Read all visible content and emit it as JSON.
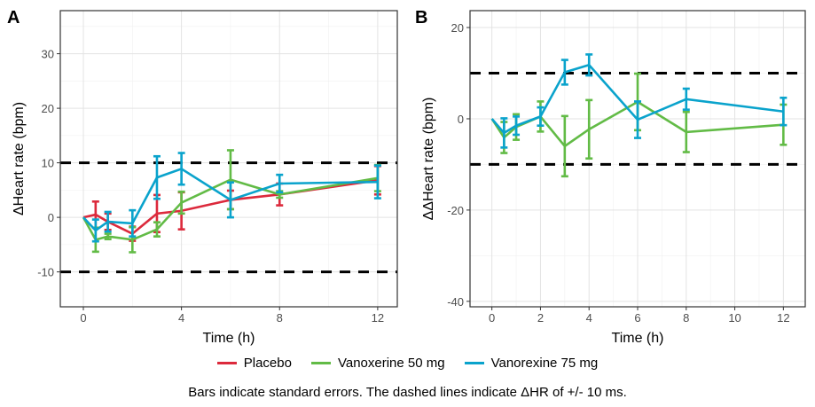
{
  "caption": "Bars indicate standard errors. The dashed lines indicate ΔHR of +/- 10 ms.",
  "colors": {
    "Placebo": "#dc2a3c",
    "Vanoxerine 50 mg": "#62bb46",
    "Vanorexine 75 mg": "#0aa3cc"
  },
  "legend": [
    "Placebo",
    "Vanoxerine 50 mg",
    "Vanorexine 75 mg"
  ],
  "chart_data": [
    {
      "type": "line",
      "panel_label": "A",
      "xlabel": "Time (h)",
      "ylabel": "ΔHeart rate (bpm)",
      "xlim": [
        -0.94,
        12.8
      ],
      "ylim": [
        -16.4,
        37.9
      ],
      "xticks": [
        0,
        4,
        8,
        12
      ],
      "yticks": [
        -10,
        0,
        10,
        20,
        30
      ],
      "ytick_labels": [
        "-10",
        "0",
        "10",
        "20",
        "30"
      ],
      "grid": true,
      "hlines": [
        10,
        -10
      ],
      "x": [
        0,
        0.5,
        1,
        2,
        3,
        4,
        6,
        8,
        12
      ],
      "series": [
        {
          "name": "Placebo",
          "values": [
            0,
            0.5,
            -0.8,
            -3.0,
            0.7,
            1.2,
            3.2,
            4.2,
            6.8
          ],
          "se": [
            0,
            2.4,
            1.5,
            1.3,
            3.4,
            3.4,
            1.7,
            2.0,
            2.6
          ]
        },
        {
          "name": "Vanoxerine 50 mg",
          "values": [
            0,
            -4.1,
            -3.5,
            -4.1,
            -2.2,
            2.7,
            6.9,
            4.2,
            7.2
          ],
          "se": [
            0,
            2.2,
            0.5,
            2.3,
            1.3,
            2.0,
            5.4,
            0.6,
            2.4
          ]
        },
        {
          "name": "Vanorexine 75 mg",
          "values": [
            0,
            -2.4,
            -0.8,
            -1.1,
            7.3,
            8.9,
            3.2,
            6.2,
            6.5
          ],
          "se": [
            0,
            2.0,
            1.8,
            2.4,
            3.9,
            2.9,
            3.2,
            1.6,
            3.0
          ]
        }
      ]
    },
    {
      "type": "line",
      "panel_label": "B",
      "xlabel": "Time (h)",
      "ylabel": "ΔΔHeart rate (bpm)",
      "xlim": [
        -0.9,
        12.9
      ],
      "ylim": [
        -41.2,
        23.7
      ],
      "xticks": [
        0,
        2,
        4,
        6,
        8,
        10,
        12
      ],
      "yticks": [
        -40,
        -20,
        0,
        20
      ],
      "ytick_labels": [
        "-40",
        "-20",
        "0",
        "20"
      ],
      "grid": true,
      "hlines": [
        10,
        -10
      ],
      "x": [
        0,
        0.5,
        1,
        2,
        3,
        4,
        6,
        8,
        12
      ],
      "series": [
        {
          "name": "Vanoxerine 50 mg",
          "values": [
            0,
            -4.1,
            -1.8,
            0.5,
            -6.0,
            -2.3,
            3.7,
            -2.9,
            -1.3
          ],
          "se": [
            0,
            3.4,
            2.8,
            3.3,
            6.6,
            6.4,
            6.2,
            4.4,
            4.4
          ]
        },
        {
          "name": "Vanorexine 75 mg",
          "values": [
            0,
            -3.1,
            -1.5,
            0.5,
            10.2,
            11.8,
            -0.2,
            4.3,
            1.6
          ],
          "se": [
            0,
            3.2,
            2.0,
            2.0,
            2.7,
            2.3,
            4.0,
            2.3,
            3.0
          ]
        }
      ]
    }
  ]
}
